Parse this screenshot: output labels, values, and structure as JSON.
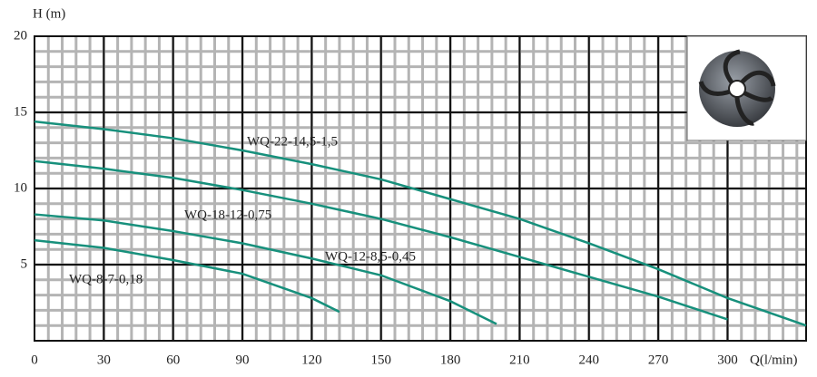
{
  "chart_data": {
    "type": "line",
    "y_label": "H (m)",
    "x_label": "Q(l/min)",
    "xlim": [
      0,
      334
    ],
    "ylim": [
      0,
      20
    ],
    "xticks": [
      0,
      30,
      60,
      90,
      120,
      150,
      180,
      210,
      240,
      270,
      300
    ],
    "yticks": [
      5,
      10,
      15,
      20
    ],
    "grid": true,
    "series": [
      {
        "name": "WQ-22-14,5-1,5",
        "color": "#17907c",
        "x": [
          0,
          30,
          60,
          90,
          120,
          150,
          180,
          210,
          240,
          270,
          300,
          334
        ],
        "values": [
          14.4,
          13.9,
          13.3,
          12.5,
          11.6,
          10.6,
          9.3,
          8.0,
          6.4,
          4.7,
          2.8,
          1.0
        ]
      },
      {
        "name": "WQ-18-12-0,75",
        "color": "#17907c",
        "x": [
          0,
          30,
          60,
          90,
          120,
          150,
          180,
          210,
          240,
          270,
          300
        ],
        "values": [
          11.8,
          11.3,
          10.7,
          9.9,
          9.0,
          8.0,
          6.8,
          5.5,
          4.2,
          2.9,
          1.4
        ]
      },
      {
        "name": "WQ-12-8,5-0,45",
        "color": "#17907c",
        "x": [
          0,
          30,
          60,
          90,
          120,
          150,
          180,
          200
        ],
        "values": [
          8.3,
          7.9,
          7.2,
          6.4,
          5.4,
          4.3,
          2.6,
          1.1
        ]
      },
      {
        "name": "WQ-8-7-0,18",
        "color": "#17907c",
        "x": [
          0,
          30,
          60,
          90,
          120,
          132
        ],
        "values": [
          6.6,
          6.1,
          5.3,
          4.4,
          2.8,
          1.9
        ]
      }
    ]
  }
}
